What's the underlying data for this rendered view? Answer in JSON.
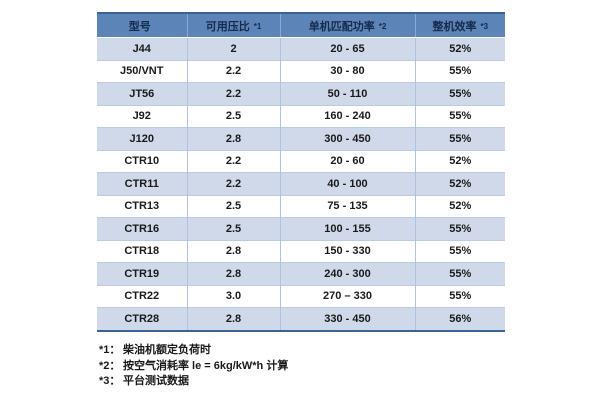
{
  "table": {
    "headers": [
      {
        "label": "型号",
        "note": ""
      },
      {
        "label": "可用压比",
        "note": "*1"
      },
      {
        "label": "单机匹配功率",
        "note": "*2"
      },
      {
        "label": "整机效率",
        "note": "*3"
      }
    ],
    "rows": [
      {
        "model": "J44",
        "pressure_ratio": "2",
        "power_range": "20 - 65",
        "efficiency": "52%"
      },
      {
        "model": "J50/VNT",
        "pressure_ratio": "2.2",
        "power_range": "30 - 80",
        "efficiency": "55%"
      },
      {
        "model": "JT56",
        "pressure_ratio": "2.2",
        "power_range": "50 - 110",
        "efficiency": "55%"
      },
      {
        "model": "J92",
        "pressure_ratio": "2.5",
        "power_range": "160 - 240",
        "efficiency": "55%"
      },
      {
        "model": "J120",
        "pressure_ratio": "2.8",
        "power_range": "300 - 450",
        "efficiency": "55%"
      },
      {
        "model": "CTR10",
        "pressure_ratio": "2.2",
        "power_range": "20 - 60",
        "efficiency": "52%"
      },
      {
        "model": "CTR11",
        "pressure_ratio": "2.2",
        "power_range": "40 - 100",
        "efficiency": "52%"
      },
      {
        "model": "CTR13",
        "pressure_ratio": "2.5",
        "power_range": "75 - 135",
        "efficiency": "52%"
      },
      {
        "model": "CTR16",
        "pressure_ratio": "2.5",
        "power_range": "100 - 155",
        "efficiency": "55%"
      },
      {
        "model": "CTR18",
        "pressure_ratio": "2.8",
        "power_range": "150 - 330",
        "efficiency": "55%"
      },
      {
        "model": "CTR19",
        "pressure_ratio": "2.8",
        "power_range": "240 - 300",
        "efficiency": "55%"
      },
      {
        "model": "CTR22",
        "pressure_ratio": "3.0",
        "power_range": "270 – 330",
        "efficiency": "55%"
      },
      {
        "model": "CTR28",
        "pressure_ratio": "2.8",
        "power_range": "330 - 450",
        "efficiency": "56%"
      }
    ]
  },
  "footnotes": [
    {
      "marker": "*1：",
      "text": "柴油机额定负荷时"
    },
    {
      "marker": "*2：",
      "text": "按空气消耗率  le = 6kg/kW*h  计算"
    },
    {
      "marker": "*3：",
      "text": "平台测试数据"
    }
  ],
  "colors": {
    "header_bg": "#5d84b6",
    "header_text": "#152b4e",
    "row_alt_bg": "#cfd9e9",
    "row_bg": "#ffffff",
    "border_dark": "#3a6496",
    "border_light": "#aec3e0",
    "body_text": "#1a1a1a"
  }
}
